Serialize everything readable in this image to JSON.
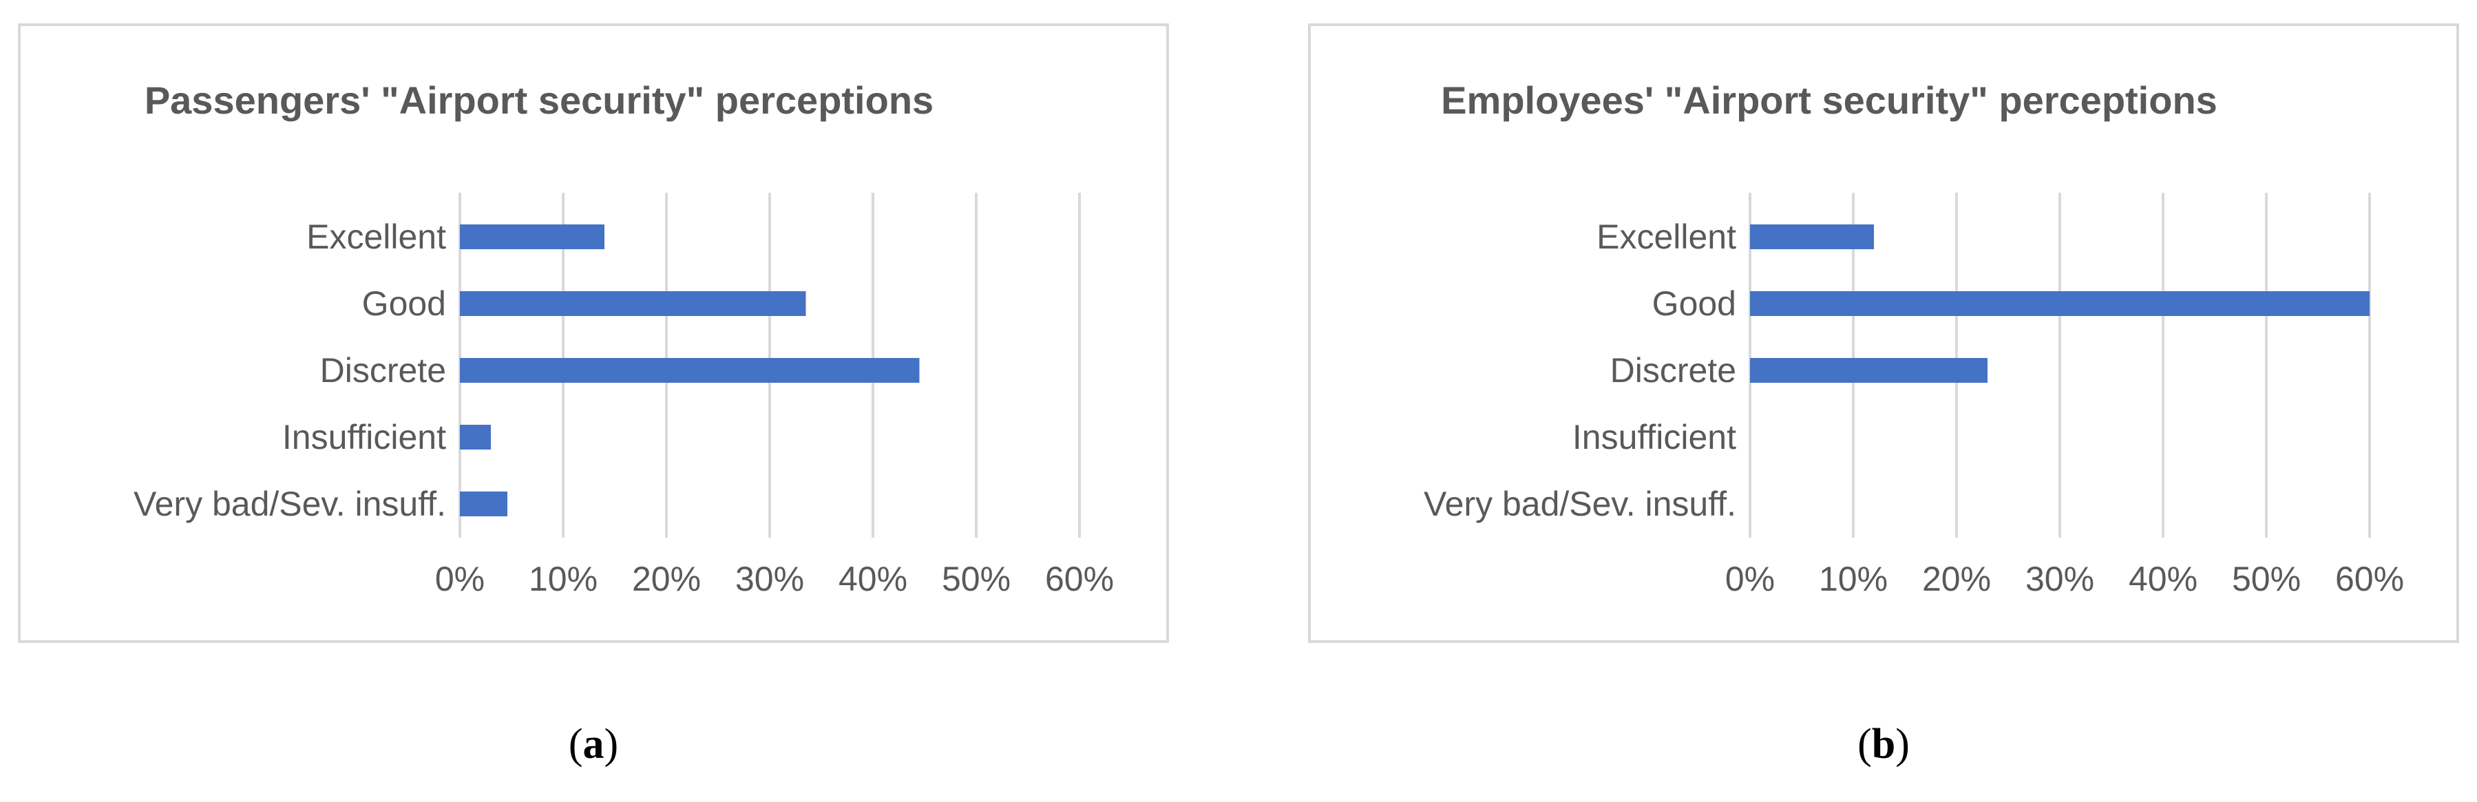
{
  "colors": {
    "bar": "#4472c4",
    "grid": "#d9d9d9",
    "text": "#595959",
    "border": "#d9d9d9"
  },
  "captions": {
    "a": {
      "open": "(",
      "letter": "a",
      "close": ")"
    },
    "b": {
      "open": "(",
      "letter": "b",
      "close": ")"
    }
  },
  "chart_data": [
    {
      "type": "bar",
      "orientation": "horizontal",
      "title": "Passengers' \"Airport security\" perceptions",
      "categories": [
        "Excellent",
        "Good",
        "Discrete",
        "Insufficient",
        "Very bad/Sev. insuff."
      ],
      "values": [
        14,
        33.5,
        44.5,
        3,
        4.6
      ],
      "xlim": [
        0,
        60
      ],
      "xticks": [
        "0%",
        "10%",
        "20%",
        "30%",
        "40%",
        "50%",
        "60%"
      ],
      "xlabel": "",
      "ylabel": "",
      "grid": true,
      "legend": "none"
    },
    {
      "type": "bar",
      "orientation": "horizontal",
      "title": "Employees' \"Airport security\" perceptions",
      "categories": [
        "Excellent",
        "Good",
        "Discrete",
        "Insufficient",
        "Very bad/Sev. insuff."
      ],
      "values": [
        12,
        60,
        23,
        0,
        0
      ],
      "xlim": [
        0,
        60
      ],
      "xticks": [
        "0%",
        "10%",
        "20%",
        "30%",
        "40%",
        "50%",
        "60%"
      ],
      "xlabel": "",
      "ylabel": "",
      "grid": true,
      "legend": "none"
    }
  ]
}
